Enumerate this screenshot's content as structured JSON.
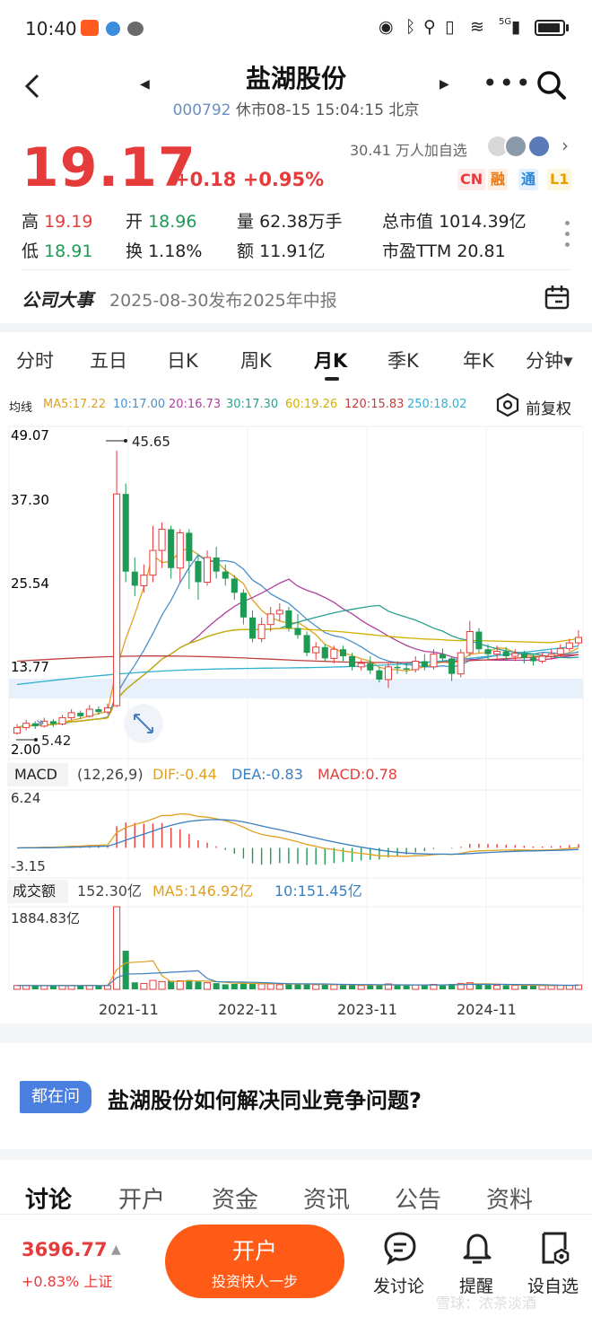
{
  "status_bar": {
    "time": "10:40",
    "net": "5G"
  },
  "header": {
    "title": "盐湖股份",
    "code": "000792",
    "status_line": "休市08-15 15:04:15 北京"
  },
  "quote": {
    "price": "19.17",
    "change": "+0.18 +0.95%",
    "followers": "30.41 万人加自选",
    "badges": [
      "CN",
      "融",
      "通",
      "L1"
    ],
    "high_label": "高",
    "high": "19.19",
    "low_label": "低",
    "low": "18.91",
    "open_label": "开",
    "open": "18.96",
    "turnover_label": "换",
    "turnover": "1.18%",
    "volume_label": "量",
    "volume": "62.38万手",
    "amount_label": "额",
    "amount": "11.91亿",
    "mcap_label": "总市值",
    "mcap": "1014.39亿",
    "pe_label": "市盈TTM",
    "pe": "20.81"
  },
  "event": {
    "label": "公司大事",
    "text": "2025-08-30发布2025年中报"
  },
  "tabs": [
    "分时",
    "五日",
    "日K",
    "周K",
    "月K",
    "季K",
    "年K",
    "分钟▾"
  ],
  "active_tab": 4,
  "ma_legend": {
    "label": "均线",
    "items": [
      {
        "text": "MA5:17.22",
        "color": "#e0a020"
      },
      {
        "text": "10:17.00",
        "color": "#4a90c8"
      },
      {
        "text": "20:16.73",
        "color": "#b040a0"
      },
      {
        "text": "30:17.30",
        "color": "#2aa090"
      },
      {
        "text": "60:19.26",
        "color": "#d0b000"
      },
      {
        "text": "120:15.83",
        "color": "#c04040"
      },
      {
        "text": "250:18.02",
        "color": "#30b0d0"
      }
    ],
    "fq": "前复权"
  },
  "chart_data": {
    "type": "candlestick",
    "period": "monthly",
    "y_ticks": [
      "49.07",
      "37.30",
      "25.54",
      "13.77",
      "2.00"
    ],
    "ylim": [
      2.0,
      49.07
    ],
    "max_label": "45.65",
    "min_label": "5.42",
    "x_ticks": [
      "2021-11",
      "2022-11",
      "2023-11",
      "2024-11"
    ],
    "candles": [
      {
        "o": 5.6,
        "c": 6.4,
        "h": 6.9,
        "l": 5.4
      },
      {
        "o": 6.4,
        "c": 7.0,
        "h": 7.5,
        "l": 6.0
      },
      {
        "o": 7.0,
        "c": 6.6,
        "h": 7.3,
        "l": 6.2
      },
      {
        "o": 6.6,
        "c": 7.3,
        "h": 7.8,
        "l": 6.4
      },
      {
        "o": 7.3,
        "c": 6.9,
        "h": 7.6,
        "l": 6.5
      },
      {
        "o": 6.9,
        "c": 7.8,
        "h": 8.2,
        "l": 6.7
      },
      {
        "o": 7.8,
        "c": 8.5,
        "h": 9.0,
        "l": 7.5
      },
      {
        "o": 8.5,
        "c": 8.0,
        "h": 8.8,
        "l": 7.6
      },
      {
        "o": 8.0,
        "c": 9.0,
        "h": 9.6,
        "l": 7.8
      },
      {
        "o": 9.0,
        "c": 8.6,
        "h": 9.4,
        "l": 8.2
      },
      {
        "o": 8.6,
        "c": 9.2,
        "h": 9.8,
        "l": 8.3
      },
      {
        "o": 9.5,
        "c": 39.5,
        "h": 45.65,
        "l": 9.3
      },
      {
        "o": 39.5,
        "c": 28.5,
        "h": 41.0,
        "l": 27.0
      },
      {
        "o": 28.5,
        "c": 26.5,
        "h": 30.5,
        "l": 25.0
      },
      {
        "o": 26.5,
        "c": 28.0,
        "h": 29.5,
        "l": 25.5
      },
      {
        "o": 28.0,
        "c": 31.5,
        "h": 35.0,
        "l": 27.0
      },
      {
        "o": 31.5,
        "c": 34.5,
        "h": 35.5,
        "l": 29.0
      },
      {
        "o": 34.5,
        "c": 29.0,
        "h": 35.0,
        "l": 27.5
      },
      {
        "o": 29.0,
        "c": 34.0,
        "h": 34.5,
        "l": 27.0
      },
      {
        "o": 34.0,
        "c": 30.0,
        "h": 34.5,
        "l": 26.0
      },
      {
        "o": 30.0,
        "c": 27.0,
        "h": 31.0,
        "l": 24.5
      },
      {
        "o": 27.0,
        "c": 30.5,
        "h": 31.5,
        "l": 26.5
      },
      {
        "o": 30.5,
        "c": 28.5,
        "h": 32.0,
        "l": 27.5
      },
      {
        "o": 28.5,
        "c": 27.5,
        "h": 29.5,
        "l": 26.5
      },
      {
        "o": 27.5,
        "c": 25.5,
        "h": 28.0,
        "l": 24.5
      },
      {
        "o": 25.5,
        "c": 22.0,
        "h": 26.0,
        "l": 21.0
      },
      {
        "o": 22.0,
        "c": 19.0,
        "h": 23.0,
        "l": 18.5
      },
      {
        "o": 19.0,
        "c": 21.0,
        "h": 22.0,
        "l": 18.5
      },
      {
        "o": 21.0,
        "c": 22.5,
        "h": 23.5,
        "l": 20.0
      },
      {
        "o": 22.5,
        "c": 23.0,
        "h": 24.0,
        "l": 21.5
      },
      {
        "o": 23.0,
        "c": 20.5,
        "h": 23.5,
        "l": 20.0
      },
      {
        "o": 20.5,
        "c": 19.5,
        "h": 22.5,
        "l": 19.0
      },
      {
        "o": 19.5,
        "c": 17.0,
        "h": 20.0,
        "l": 16.5
      },
      {
        "o": 17.0,
        "c": 17.8,
        "h": 18.5,
        "l": 16.0
      },
      {
        "o": 17.8,
        "c": 16.2,
        "h": 18.2,
        "l": 15.8
      },
      {
        "o": 16.2,
        "c": 17.5,
        "h": 18.0,
        "l": 15.5
      },
      {
        "o": 17.5,
        "c": 16.5,
        "h": 18.0,
        "l": 15.8
      },
      {
        "o": 16.5,
        "c": 15.0,
        "h": 17.0,
        "l": 14.5
      },
      {
        "o": 15.0,
        "c": 15.5,
        "h": 16.0,
        "l": 14.5
      },
      {
        "o": 15.5,
        "c": 14.5,
        "h": 16.5,
        "l": 14.0
      },
      {
        "o": 14.5,
        "c": 13.2,
        "h": 15.0,
        "l": 12.8
      },
      {
        "o": 13.2,
        "c": 15.0,
        "h": 15.5,
        "l": 12.0
      },
      {
        "o": 15.0,
        "c": 14.8,
        "h": 15.8,
        "l": 14.0
      },
      {
        "o": 14.8,
        "c": 14.6,
        "h": 15.6,
        "l": 14.0
      },
      {
        "o": 14.6,
        "c": 15.8,
        "h": 16.5,
        "l": 14.2
      },
      {
        "o": 15.8,
        "c": 15.0,
        "h": 16.8,
        "l": 14.5
      },
      {
        "o": 15.0,
        "c": 16.8,
        "h": 17.5,
        "l": 14.6
      },
      {
        "o": 16.8,
        "c": 16.2,
        "h": 17.6,
        "l": 15.6
      },
      {
        "o": 16.2,
        "c": 14.0,
        "h": 16.5,
        "l": 13.0
      },
      {
        "o": 14.0,
        "c": 17.0,
        "h": 17.5,
        "l": 13.5
      },
      {
        "o": 17.0,
        "c": 20.0,
        "h": 21.5,
        "l": 16.5
      },
      {
        "o": 20.0,
        "c": 17.5,
        "h": 20.5,
        "l": 17.0
      },
      {
        "o": 17.5,
        "c": 16.8,
        "h": 18.2,
        "l": 16.0
      },
      {
        "o": 16.8,
        "c": 17.2,
        "h": 18.0,
        "l": 16.2
      },
      {
        "o": 17.2,
        "c": 16.5,
        "h": 17.8,
        "l": 16.0
      },
      {
        "o": 16.5,
        "c": 16.9,
        "h": 17.5,
        "l": 15.8
      },
      {
        "o": 16.9,
        "c": 16.3,
        "h": 17.3,
        "l": 15.5
      },
      {
        "o": 16.3,
        "c": 15.8,
        "h": 16.8,
        "l": 15.2
      },
      {
        "o": 15.8,
        "c": 16.5,
        "h": 17.0,
        "l": 15.5
      },
      {
        "o": 16.5,
        "c": 16.8,
        "h": 17.5,
        "l": 16.0
      },
      {
        "o": 16.8,
        "c": 17.6,
        "h": 18.2,
        "l": 16.4
      },
      {
        "o": 17.6,
        "c": 18.4,
        "h": 19.0,
        "l": 17.2
      },
      {
        "o": 18.4,
        "c": 19.17,
        "h": 20.2,
        "l": 18.0
      }
    ],
    "macd": {
      "label": "MACD",
      "params": "(12,26,9)",
      "dif_text": "DIF:-0.44",
      "dea_text": "DEA:-0.83",
      "macd_text": "MACD:0.78",
      "y_ticks": [
        "6.24",
        "-3.15"
      ],
      "ylim": [
        -3.15,
        6.24
      ]
    },
    "volume": {
      "label": "成交额",
      "value_text": "152.30亿",
      "ma5_text": "MA5:146.92亿",
      "ma10_text": "10:151.45亿",
      "y_tick": "1884.83亿",
      "ymax": 1884.83
    }
  },
  "ask": {
    "badge": "都在问",
    "question": "盐湖股份如何解决同业竞争问题?"
  },
  "bottom_tabs": [
    "讨论",
    "开户",
    "资金",
    "资讯",
    "公告",
    "资料"
  ],
  "bottom_bar": {
    "index_value": "3696.77",
    "index_change": "+0.83% 上证",
    "open_title": "开户",
    "open_sub": "投资快人一步",
    "discuss": "发讨论",
    "remind": "提醒",
    "watch": "设自选",
    "watermark": "雪球：浓茶淡酒"
  },
  "colors": {
    "up": "#e63b3b",
    "down": "#1d9a53",
    "accent": "#ff5b17"
  }
}
